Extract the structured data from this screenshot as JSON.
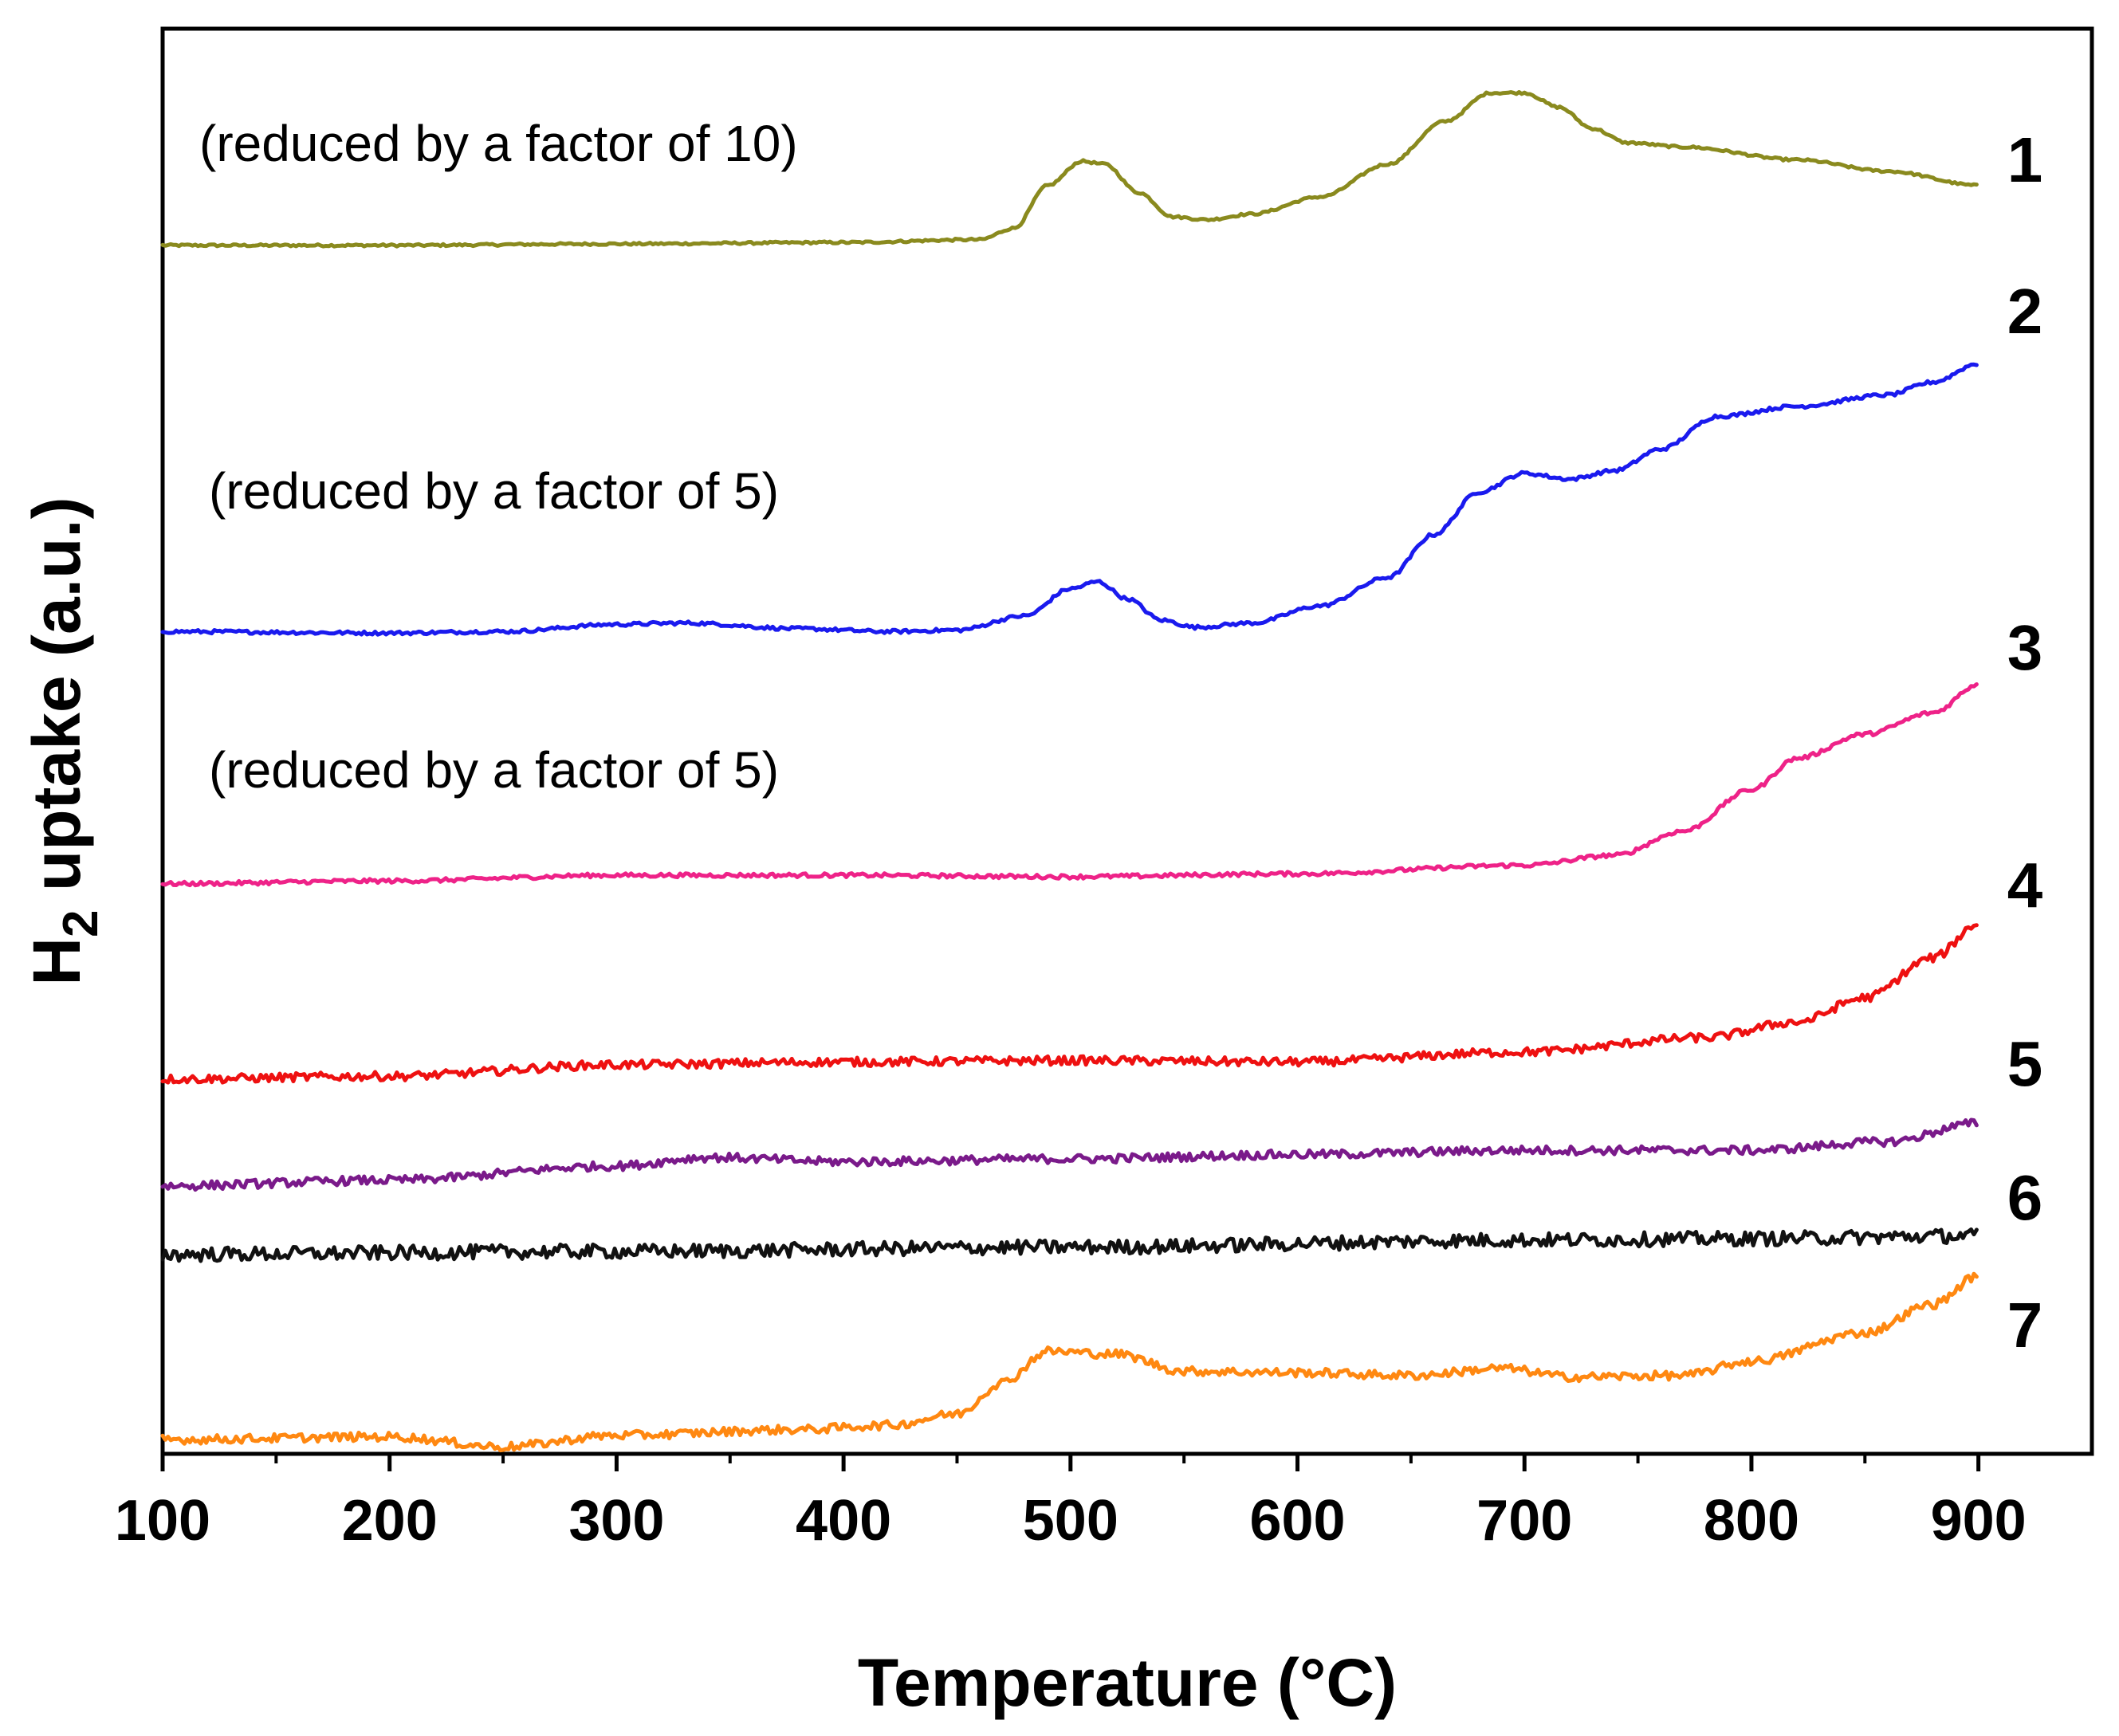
{
  "chart_data": {
    "type": "line",
    "title": "",
    "xlabel": "Temperature (°C)",
    "ylabel_main": "H",
    "ylabel_sub": "2",
    "ylabel_rest": " uptake (a.u.)",
    "xlim": [
      100,
      950
    ],
    "ylim": [
      0,
      1000
    ],
    "x_ticks": [
      100,
      200,
      300,
      400,
      500,
      600,
      700,
      800,
      900
    ],
    "x_tick_labels": [
      "100",
      "200",
      "300",
      "400",
      "500",
      "600",
      "700",
      "800",
      "900"
    ],
    "y_ticks_shown": false,
    "grid": false,
    "legend": "none",
    "series": [
      {
        "name": "1",
        "label": "1",
        "color": "#8a8a1e",
        "annotation": "(reduced by a factor of 10)",
        "noise": 0.8,
        "points": [
          [
            100,
            848
          ],
          [
            200,
            848
          ],
          [
            300,
            849
          ],
          [
            400,
            850
          ],
          [
            460,
            852
          ],
          [
            475,
            860
          ],
          [
            490,
            890
          ],
          [
            505,
            907
          ],
          [
            515,
            905
          ],
          [
            530,
            885
          ],
          [
            545,
            868
          ],
          [
            560,
            866
          ],
          [
            580,
            870
          ],
          [
            610,
            882
          ],
          [
            640,
            905
          ],
          [
            665,
            935
          ],
          [
            685,
            955
          ],
          [
            700,
            955
          ],
          [
            715,
            945
          ],
          [
            730,
            930
          ],
          [
            745,
            920
          ],
          [
            770,
            917
          ],
          [
            820,
            908
          ],
          [
            860,
            900
          ],
          [
            900,
            890
          ]
        ]
      },
      {
        "name": "2",
        "label": "2",
        "color": "#1a1aee",
        "annotation": "(reduced by a factor of 5)",
        "noise": 1.2,
        "points": [
          [
            100,
            577
          ],
          [
            200,
            576
          ],
          [
            250,
            577
          ],
          [
            300,
            582
          ],
          [
            330,
            583
          ],
          [
            380,
            579
          ],
          [
            420,
            577
          ],
          [
            450,
            578
          ],
          [
            480,
            588
          ],
          [
            500,
            607
          ],
          [
            512,
            612
          ],
          [
            525,
            600
          ],
          [
            540,
            585
          ],
          [
            555,
            580
          ],
          [
            580,
            583
          ],
          [
            610,
            595
          ],
          [
            640,
            615
          ],
          [
            660,
            645
          ],
          [
            680,
            675
          ],
          [
            700,
            688
          ],
          [
            720,
            684
          ],
          [
            740,
            690
          ],
          [
            760,
            705
          ],
          [
            785,
            728
          ],
          [
            820,
            735
          ],
          [
            860,
            743
          ],
          [
            880,
            752
          ],
          [
            900,
            765
          ]
        ]
      },
      {
        "name": "3",
        "label": "3",
        "color": "#ee2288",
        "annotation": "(reduced by a factor of 5)",
        "noise": 1.4,
        "points": [
          [
            100,
            400
          ],
          [
            200,
            402
          ],
          [
            300,
            406
          ],
          [
            400,
            406
          ],
          [
            500,
            405
          ],
          [
            600,
            407
          ],
          [
            700,
            413
          ],
          [
            740,
            420
          ],
          [
            770,
            437
          ],
          [
            800,
            466
          ],
          [
            820,
            488
          ],
          [
            850,
            505
          ],
          [
            880,
            520
          ],
          [
            900,
            540
          ]
        ]
      },
      {
        "name": "4",
        "label": "4",
        "color": "#ee1111",
        "noise": 3,
        "points": [
          [
            100,
            263
          ],
          [
            200,
            265
          ],
          [
            300,
            273
          ],
          [
            400,
            275
          ],
          [
            500,
            276
          ],
          [
            600,
            275
          ],
          [
            700,
            282
          ],
          [
            780,
            292
          ],
          [
            820,
            303
          ],
          [
            850,
            320
          ],
          [
            880,
            348
          ],
          [
            900,
            372
          ]
        ]
      },
      {
        "name": "5",
        "label": "5",
        "color": "#7a1a8a",
        "noise": 3,
        "points": [
          [
            100,
            188
          ],
          [
            200,
            192
          ],
          [
            300,
            202
          ],
          [
            340,
            208
          ],
          [
            400,
            205
          ],
          [
            500,
            207
          ],
          [
            600,
            210
          ],
          [
            700,
            213
          ],
          [
            800,
            213
          ],
          [
            860,
            219
          ],
          [
            900,
            232
          ]
        ]
      },
      {
        "name": "6",
        "label": "6",
        "color": "#111111",
        "noise": 5,
        "points": [
          [
            100,
            140
          ],
          [
            300,
            142
          ],
          [
            500,
            145
          ],
          [
            700,
            150
          ],
          [
            800,
            151
          ],
          [
            900,
            153
          ]
        ]
      },
      {
        "name": "7",
        "label": "7",
        "color": "#ff8811",
        "noise": 3,
        "points": [
          [
            100,
            10
          ],
          [
            200,
            12
          ],
          [
            250,
            5
          ],
          [
            300,
            13
          ],
          [
            380,
            17
          ],
          [
            420,
            20
          ],
          [
            450,
            28
          ],
          [
            470,
            50
          ],
          [
            490,
            72
          ],
          [
            520,
            70
          ],
          [
            550,
            58
          ],
          [
            600,
            57
          ],
          [
            650,
            55
          ],
          [
            690,
            60
          ],
          [
            720,
            54
          ],
          [
            770,
            55
          ],
          [
            800,
            65
          ],
          [
            850,
            85
          ],
          [
            880,
            105
          ],
          [
            900,
            125
          ]
        ]
      }
    ]
  }
}
